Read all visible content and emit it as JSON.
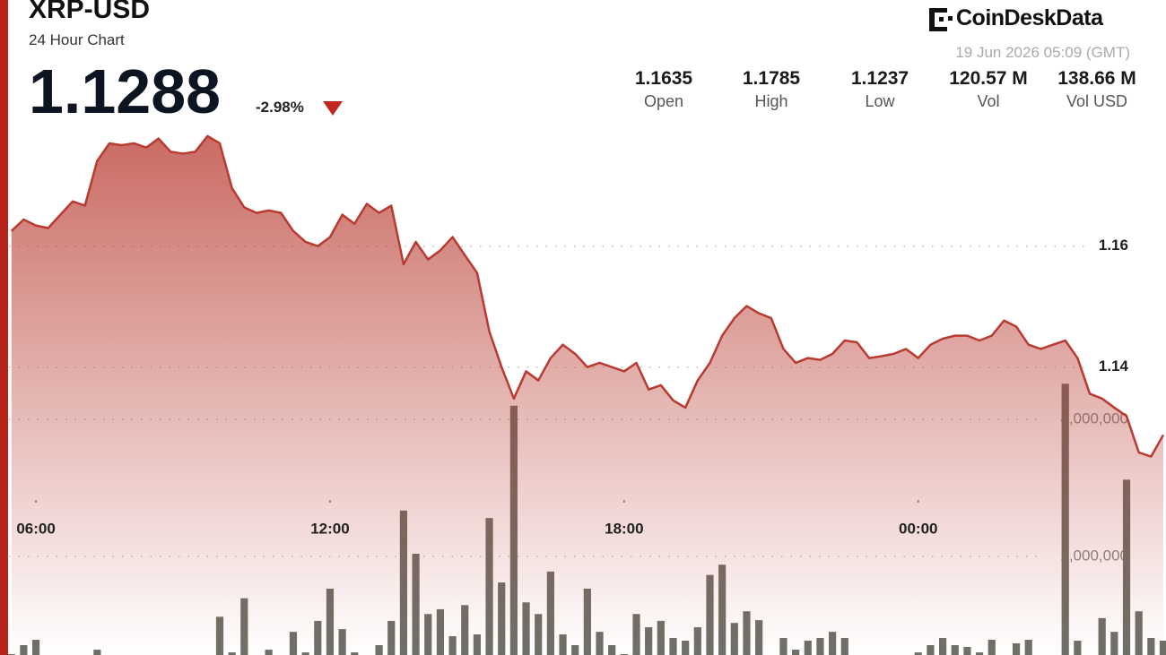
{
  "header": {
    "title": "XRP-USD",
    "subtitle": "24 Hour Chart",
    "price": "1.1288",
    "change": "-2.98%",
    "brand": "CoinDeskData",
    "timestamp": "19 Jun 2026 05:09 (GMT)",
    "stats": [
      {
        "value": "1.1635",
        "label": "Open"
      },
      {
        "value": "1.1785",
        "label": "High"
      },
      {
        "value": "1.1237",
        "label": "Low"
      },
      {
        "value": "120.57 M",
        "label": "Vol"
      },
      {
        "value": "138.66 M",
        "label": "Vol USD"
      }
    ]
  },
  "chart_data": {
    "type": "line",
    "grid": true,
    "x": [
      5.5,
      5.75,
      6,
      6.25,
      6.5,
      6.75,
      7,
      7.25,
      7.5,
      7.75,
      8,
      8.25,
      8.5,
      8.75,
      9,
      9.25,
      9.5,
      9.75,
      10,
      10.25,
      10.5,
      10.75,
      11,
      11.25,
      11.5,
      11.75,
      12,
      12.25,
      12.5,
      12.75,
      13,
      13.25,
      13.5,
      13.75,
      14,
      14.25,
      14.5,
      14.75,
      15,
      15.25,
      15.5,
      15.75,
      16,
      16.25,
      16.5,
      16.75,
      17,
      17.25,
      17.5,
      17.75,
      18,
      18.25,
      18.5,
      18.75,
      19,
      19.25,
      19.5,
      19.75,
      20,
      20.25,
      20.5,
      20.75,
      21,
      21.25,
      21.5,
      21.75,
      22,
      22.25,
      22.5,
      22.75,
      23,
      23.25,
      23.5,
      23.75,
      24,
      24.25,
      24.5,
      24.75,
      25,
      25.25,
      25.5,
      25.75,
      26,
      26.25,
      26.5,
      26.75,
      27,
      27.25,
      27.5,
      27.75,
      28,
      28.25,
      28.5,
      28.75,
      29
    ],
    "xlim": [
      5.45,
      29.0
    ],
    "xticks": [
      {
        "value": 6,
        "label": "06:00"
      },
      {
        "value": 12,
        "label": "12:00"
      },
      {
        "value": 18,
        "label": "18:00"
      },
      {
        "value": 24,
        "label": "00:00"
      }
    ],
    "ylim": [
      1.0924,
      1.2007
    ],
    "yticks": [
      1.14,
      1.16
    ],
    "y2lim": [
      562000,
      10120000
    ],
    "y2ticks": [
      {
        "value": 2000000,
        "label": "2,000,000"
      },
      {
        "value": 4000000,
        "label": "4,000,000"
      }
    ],
    "series": [
      {
        "color": "#b83a30",
        "values": [
          1.1625,
          1.1644,
          1.1634,
          1.163,
          1.1652,
          1.1674,
          1.1667,
          1.1741,
          1.177,
          1.1767,
          1.177,
          1.1763,
          1.1778,
          1.1756,
          1.1753,
          1.1756,
          1.1782,
          1.177,
          1.1696,
          1.1664,
          1.1655,
          1.1659,
          1.1655,
          1.1625,
          1.1607,
          1.16,
          1.1615,
          1.1652,
          1.1637,
          1.167,
          1.1655,
          1.1667,
          1.157,
          1.1607,
          1.1578,
          1.1593,
          1.1615,
          1.1585,
          1.1556,
          1.1459,
          1.14,
          1.1348,
          1.1393,
          1.1378,
          1.1415,
          1.1437,
          1.1422,
          1.14,
          1.1407,
          1.14,
          1.1393,
          1.1407,
          1.1363,
          1.137,
          1.1345,
          1.1333,
          1.1378,
          1.1407,
          1.1452,
          1.1481,
          1.1501,
          1.1489,
          1.1481,
          1.143,
          1.1407,
          1.1415,
          1.1412,
          1.1422,
          1.1444,
          1.1441,
          1.1415,
          1.1418,
          1.1422,
          1.143,
          1.1415,
          1.1437,
          1.1447,
          1.1452,
          1.1452,
          1.1444,
          1.1452,
          1.1477,
          1.1467,
          1.1437,
          1.143,
          1.1437,
          1.1444,
          1.1415,
          1.1356,
          1.1348,
          1.1333,
          1.1319,
          1.1259,
          1.1252,
          1.1288
        ]
      },
      {
        "type": "bar",
        "axis": "y2",
        "color": "#6f6f68",
        "values": [
          575000,
          706000,
          784000,
          400000,
          400000,
          400000,
          400000,
          640000,
          400000,
          400000,
          400000,
          400000,
          400000,
          400000,
          400000,
          400000,
          400000,
          1120000,
          600000,
          1390000,
          400000,
          640000,
          400000,
          900000,
          600000,
          1060000,
          1530000,
          940000,
          600000,
          400000,
          706000,
          1060000,
          2670000,
          2040000,
          1160000,
          1230000,
          837000,
          1290000,
          863000,
          2560000,
          1620000,
          4200000,
          1330000,
          1160000,
          1780000,
          863000,
          706000,
          1530000,
          900000,
          706000,
          575000,
          1160000,
          967000,
          1060000,
          810000,
          771000,
          967000,
          1730000,
          1880000,
          1030000,
          1200000,
          1070000,
          400000,
          810000,
          640000,
          771000,
          810000,
          900000,
          810000,
          400000,
          400000,
          400000,
          400000,
          400000,
          600000,
          706000,
          810000,
          706000,
          680000,
          600000,
          784000,
          400000,
          732000,
          784000,
          400000,
          400000,
          4520000,
          771000,
          400000,
          1100000,
          900000,
          3120000,
          1200000,
          810000,
          771000
        ]
      }
    ]
  }
}
